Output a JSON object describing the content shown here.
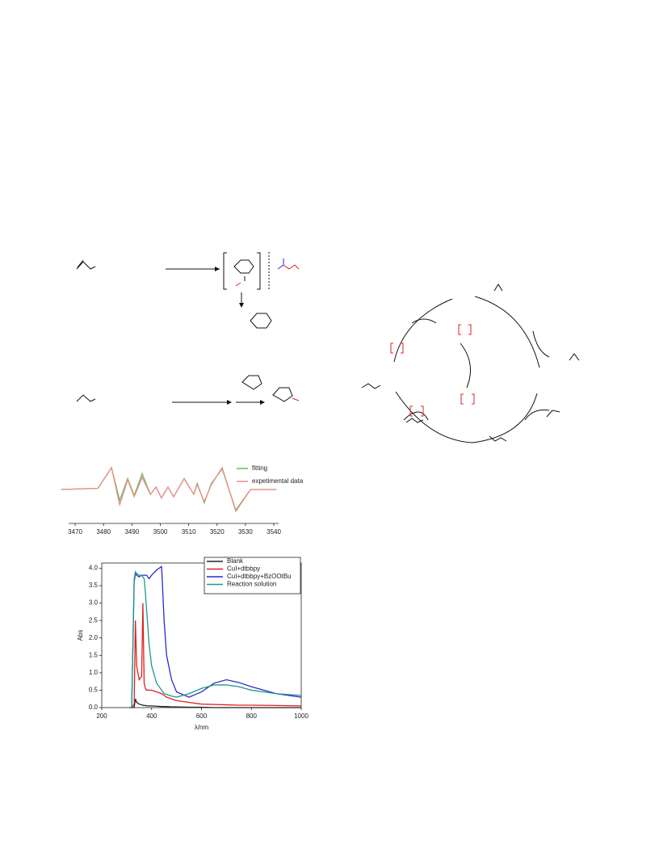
{
  "chart_data": [
    {
      "type": "line",
      "x": [
        3465,
        3478,
        3482.8,
        3485.7,
        3488.5,
        3490.8,
        3493.6,
        3496.5,
        3498.5,
        3500.4,
        3502.7,
        3504.7,
        3508.4,
        3511.8,
        3513,
        3515.5,
        3518,
        3521.8,
        3526.6,
        3531.8,
        3541
      ],
      "series": [
        {
          "name": "fitting",
          "color": "#5cc05c",
          "values": [
            0,
            0.05,
            0.9,
            -0.45,
            0.45,
            -0.25,
            0.65,
            -0.2,
            0.1,
            -0.35,
            0.1,
            -0.3,
            0.45,
            -0.2,
            0.25,
            -0.55,
            0.25,
            0.85,
            -0.85,
            0,
            0
          ]
        },
        {
          "name": "expetimental data",
          "color": "#f08a8a",
          "values": [
            0,
            0.05,
            0.9,
            -0.63,
            0.4,
            -0.3,
            0.5,
            -0.2,
            0.1,
            -0.35,
            0.1,
            -0.3,
            0.45,
            -0.2,
            0.2,
            -0.5,
            0.2,
            0.9,
            -0.9,
            0,
            0
          ]
        }
      ],
      "xlim": [
        3467.7,
        3541.7
      ],
      "xticks": [
        3470,
        3480,
        3490,
        3500,
        3510,
        3520,
        3530,
        3540
      ],
      "ylim": [
        -1,
        1
      ]
    },
    {
      "type": "line",
      "x": [
        310,
        320,
        330,
        335,
        340,
        350,
        360,
        365,
        370,
        375,
        380,
        390,
        400,
        420,
        440,
        450,
        460,
        480,
        500,
        550,
        600,
        650,
        700,
        750,
        800,
        900,
        1000
      ],
      "series": [
        {
          "name": "Blank",
          "color": "#222222",
          "values": [
            0,
            0,
            0,
            0.25,
            0.15,
            0.1,
            0.08,
            0.07,
            0.06,
            0.06,
            0.05,
            0.05,
            0.05,
            0.04,
            0.03,
            0.03,
            0.03,
            0.02,
            0.02,
            0.01,
            0.01,
            0,
            0,
            0,
            0,
            0,
            0
          ]
        },
        {
          "name": "CuI+dtbbpy",
          "color": "#e02020",
          "values": [
            0,
            0,
            0.1,
            2.5,
            1.2,
            0.8,
            0.9,
            3.0,
            0.7,
            0.55,
            0.5,
            0.5,
            0.5,
            0.45,
            0.4,
            0.35,
            0.3,
            0.25,
            0.2,
            0.15,
            0.1,
            0.09,
            0.08,
            0.07,
            0.07,
            0.06,
            0.05
          ]
        },
        {
          "name": "CuI+dtbbpy+BzOOtBu",
          "color": "#2a2ad0",
          "values": [
            0,
            0,
            3.6,
            3.85,
            3.8,
            3.75,
            3.8,
            3.8,
            3.8,
            3.8,
            3.8,
            3.7,
            3.8,
            3.95,
            4.05,
            2.5,
            1.5,
            0.8,
            0.45,
            0.3,
            0.45,
            0.7,
            0.8,
            0.72,
            0.6,
            0.4,
            0.3
          ]
        },
        {
          "name": "Reaction solution",
          "color": "#1f9a8a",
          "values": [
            0,
            0,
            3.7,
            3.9,
            3.85,
            3.8,
            3.8,
            3.75,
            3.7,
            3.3,
            2.8,
            1.8,
            1.2,
            0.7,
            0.5,
            0.4,
            0.38,
            0.33,
            0.3,
            0.4,
            0.55,
            0.65,
            0.65,
            0.6,
            0.5,
            0.4,
            0.35
          ]
        }
      ],
      "xlim": [
        200,
        1000
      ],
      "xticks": [
        200,
        400,
        600,
        800,
        1000
      ],
      "ylim": [
        0,
        4.15
      ],
      "yticks": [
        {
          "value": 0,
          "label": "0.0"
        },
        0.5,
        {
          "value": 1,
          "label": "1.0"
        },
        1.5,
        {
          "value": 2,
          "label": "2.0"
        },
        2.5,
        {
          "value": 3,
          "label": "3.0"
        },
        3.5,
        {
          "value": 4,
          "label": "4.0"
        }
      ],
      "xlabel": "λ/nm",
      "ylabel": "Abs"
    }
  ]
}
